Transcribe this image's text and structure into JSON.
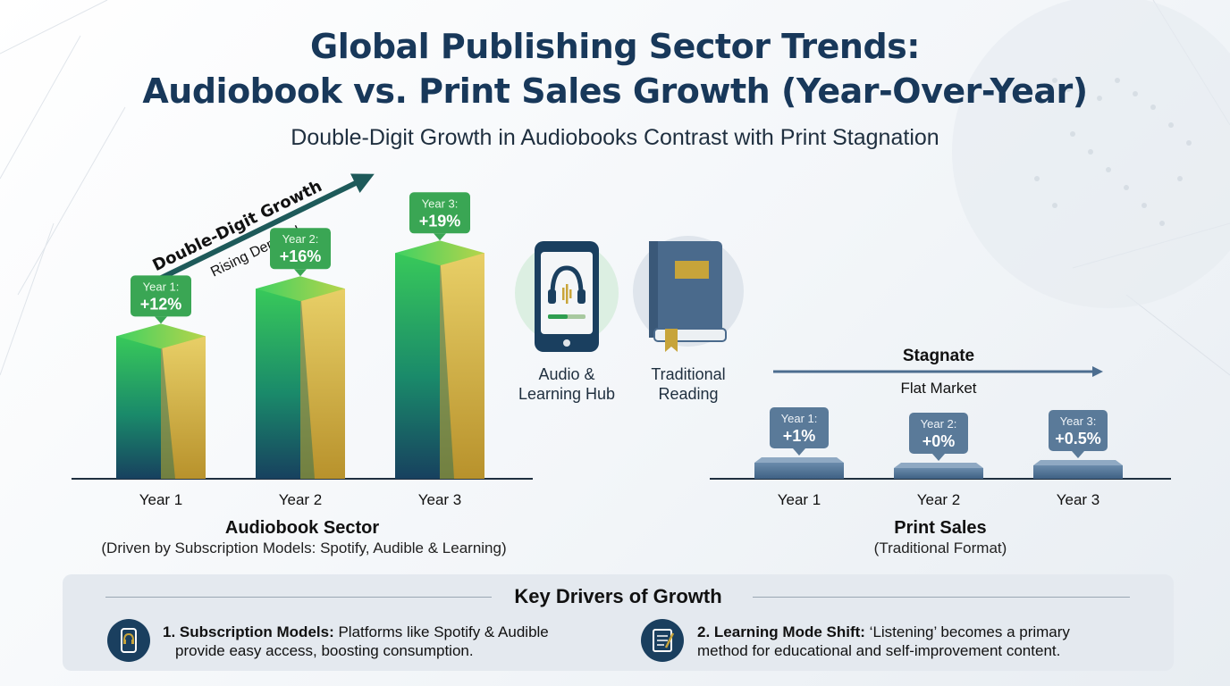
{
  "header": {
    "title_line1": "Global Publishing Sector Trends:",
    "title_line2": "Audiobook vs. Print Sales Growth (Year-Over-Year)",
    "subtitle": "Double-Digit Growth in Audiobooks Contrast with Print Stagnation"
  },
  "chart_data": [
    {
      "type": "bar",
      "title": "Audiobook Sector",
      "subtitle": "(Driven by Subscription Models: Spotify, Audible & Learning)",
      "categories": [
        "Year 1",
        "Year 2",
        "Year 3"
      ],
      "values": [
        12,
        16,
        19
      ],
      "value_labels": [
        "+12%",
        "+16%",
        "+19%"
      ],
      "callout_labels": [
        "Year 1:",
        "Year 2:",
        "Year 3:"
      ],
      "trend_label": "Double-Digit Growth",
      "trend_sublabel": "Rising Demand",
      "ylim": [
        0,
        20
      ],
      "colors": {
        "front": "#1c8a4f",
        "side": "#c7a43a",
        "callout": "#3aa654"
      }
    },
    {
      "type": "bar",
      "title": "Print Sales",
      "subtitle": "(Traditional Format)",
      "categories": [
        "Year 1",
        "Year 2",
        "Year 3"
      ],
      "values": [
        1,
        0,
        0.5
      ],
      "value_labels": [
        "+1%",
        "+0%",
        "+0.5%"
      ],
      "callout_labels": [
        "Year 1:",
        "Year 2:",
        "Year 3:"
      ],
      "trend_label": "Stagnate",
      "trend_sublabel": "Flat Market",
      "ylim": [
        0,
        20
      ],
      "colors": {
        "bar": "#4c6d8f",
        "callout": "#5a7a99"
      }
    }
  ],
  "icons": {
    "audio": {
      "label_line1": "Audio &",
      "label_line2": "Learning Hub",
      "icon": "phone-headphones-icon"
    },
    "book": {
      "label_line1": "Traditional",
      "label_line2": "Reading",
      "icon": "book-icon"
    }
  },
  "drivers": {
    "title": "Key Drivers of Growth",
    "items": [
      {
        "heading": "1. Subscription Models:",
        "line1": " Platforms like Spotify & Audible",
        "line2": "provide easy access, boosting consumption.",
        "icon": "phone-icon"
      },
      {
        "heading": "2. Learning Mode Shift:",
        "line1": " ‘Listening’ becomes a primary",
        "line2": "method for educational and self-improvement content.",
        "icon": "notebook-icon"
      }
    ]
  }
}
